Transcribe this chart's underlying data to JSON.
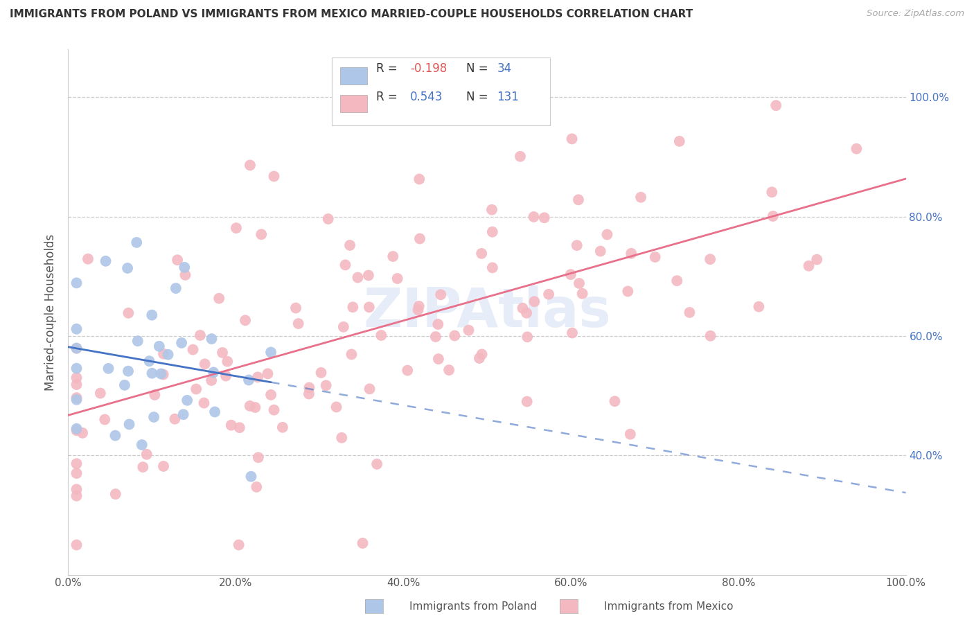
{
  "title": "IMMIGRANTS FROM POLAND VS IMMIGRANTS FROM MEXICO MARRIED-COUPLE HOUSEHOLDS CORRELATION CHART",
  "source": "Source: ZipAtlas.com",
  "ylabel": "Married-couple Households",
  "poland_R": -0.198,
  "poland_N": 34,
  "mexico_R": 0.543,
  "mexico_N": 131,
  "poland_color": "#aec6e8",
  "mexico_color": "#f4b8c1",
  "poland_line_color": "#4472c4",
  "mexico_line_color": "#e8708a",
  "background_color": "#ffffff",
  "grid_color": "#cccccc",
  "watermark": "ZIPAtlas",
  "xlim": [
    0.0,
    1.0
  ],
  "ylim": [
    0.2,
    1.08
  ],
  "yticks": [
    0.4,
    0.6,
    0.8,
    1.0
  ],
  "ytick_labels": [
    "40.0%",
    "60.0%",
    "80.0%",
    "100.0%"
  ],
  "xticks": [
    0.0,
    0.2,
    0.4,
    0.6,
    0.8,
    1.0
  ],
  "xtick_labels": [
    "0.0%",
    "20.0%",
    "40.0%",
    "60.0%",
    "80.0%",
    "100.0%"
  ]
}
